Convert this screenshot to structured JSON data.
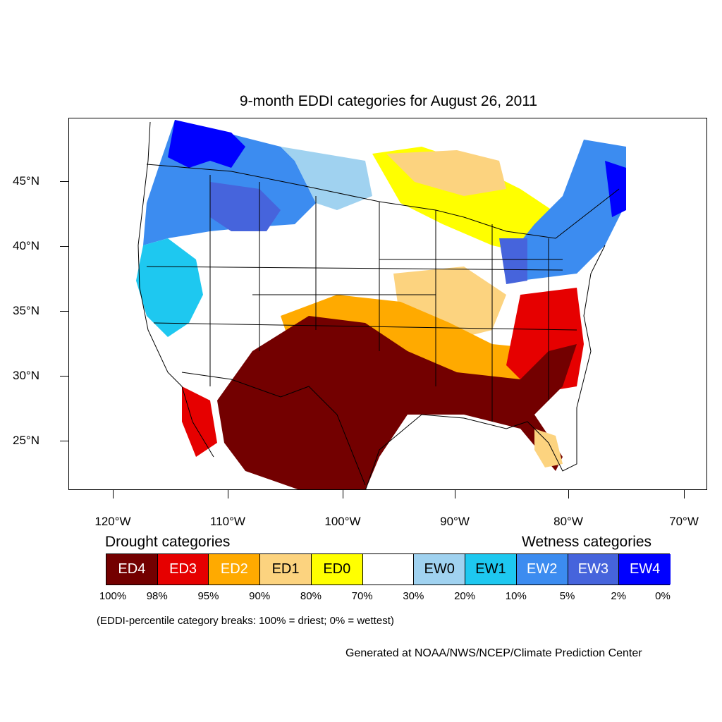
{
  "title": "9-month EDDI categories for August 26, 2011",
  "lat_labels": [
    "45°N",
    "40°N",
    "35°N",
    "30°N",
    "25°N"
  ],
  "lon_labels": [
    "120°W",
    "110°W",
    "100°W",
    "90°W",
    "80°W",
    "70°W"
  ],
  "drought_heading": "Drought categories",
  "wetness_heading": "Wetness categories",
  "legend": {
    "categories": [
      {
        "label": "ED4",
        "color": "#730000",
        "text_color": "#ffffff"
      },
      {
        "label": "ED3",
        "color": "#e60000",
        "text_color": "#ffffff"
      },
      {
        "label": "ED2",
        "color": "#ffaa00",
        "text_color": "#ffffff"
      },
      {
        "label": "ED1",
        "color": "#fcd37f",
        "text_color": "#000000"
      },
      {
        "label": "ED0",
        "color": "#ffff00",
        "text_color": "#000000"
      },
      {
        "label": "",
        "color": "#ffffff",
        "text_color": "#000000"
      },
      {
        "label": "EW0",
        "color": "#a0d2f0",
        "text_color": "#000000"
      },
      {
        "label": "EW1",
        "color": "#1ec8f0",
        "text_color": "#000000"
      },
      {
        "label": "EW2",
        "color": "#3c8cf0",
        "text_color": "#ffffff"
      },
      {
        "label": "EW3",
        "color": "#4664dc",
        "text_color": "#ffffff"
      },
      {
        "label": "EW4",
        "color": "#0000ff",
        "text_color": "#ffffff"
      }
    ],
    "percentiles": [
      "100%",
      "98%",
      "95%",
      "90%",
      "80%",
      "70%",
      "30%",
      "20%",
      "10%",
      "5%",
      "2%",
      "0%"
    ]
  },
  "note": "(EDDI-percentile category breaks: 100% = driest; 0% = wettest)",
  "credit": "Generated at NOAA/NWS/NCEP/Climate Prediction Center"
}
